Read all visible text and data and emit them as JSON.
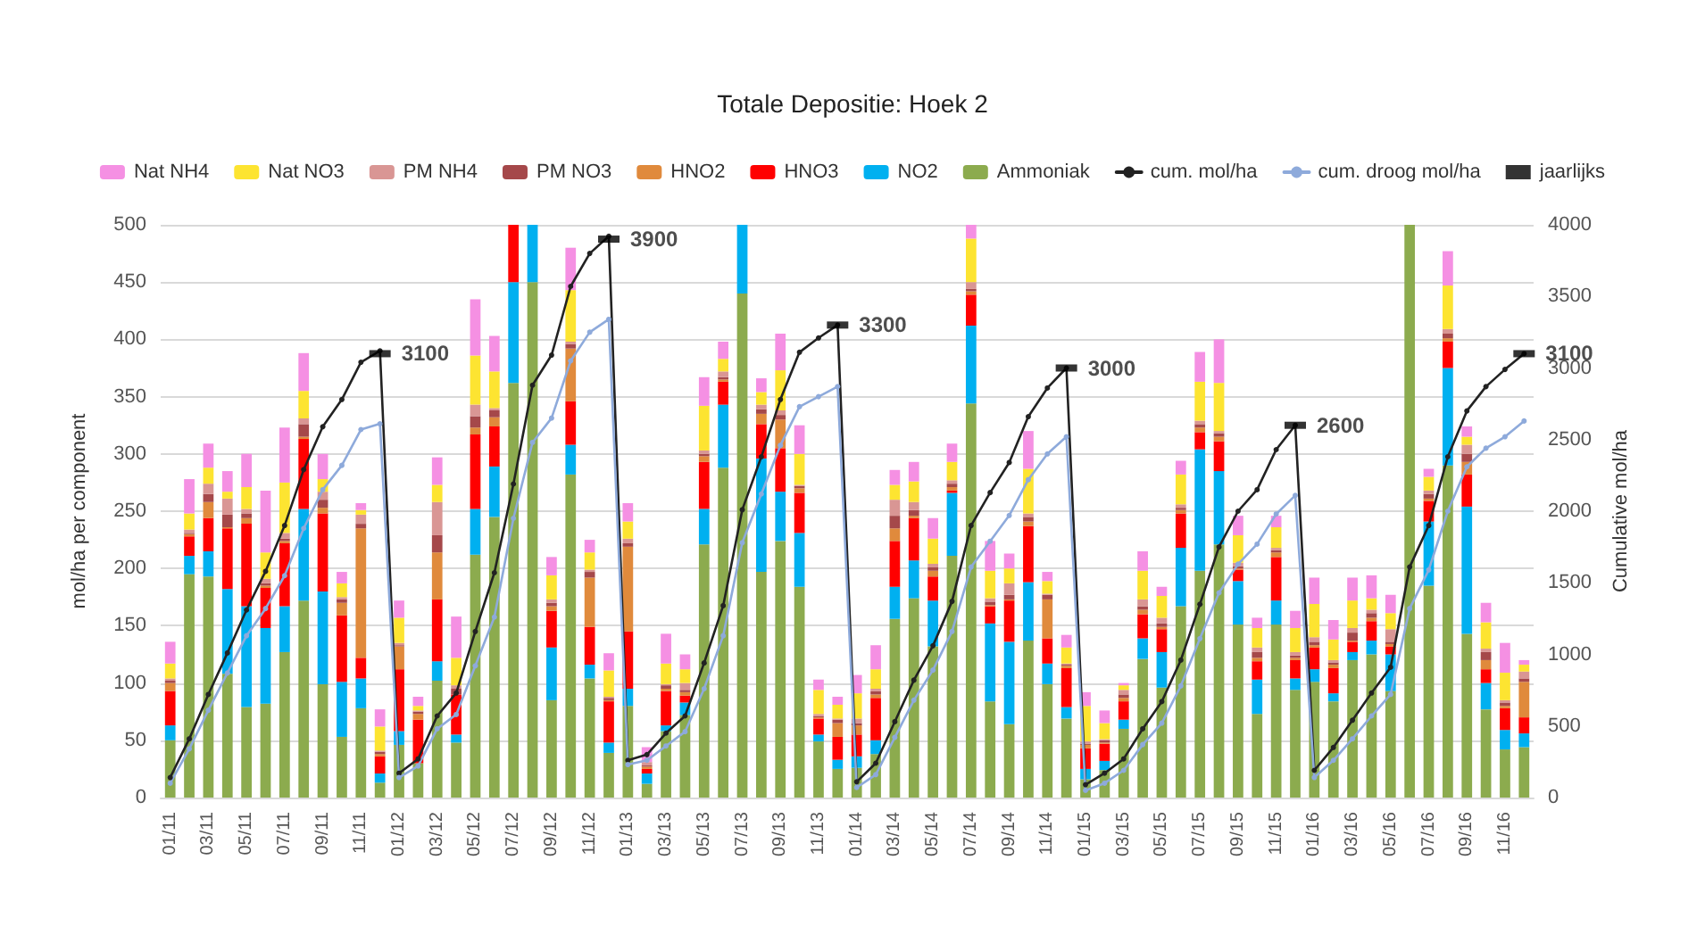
{
  "chart_data": {
    "type": "bar",
    "title": "Totale Depositie: Hoek 2",
    "ylabel": "mol/ha per component",
    "y2label": "Cumulative mol/ha",
    "categories": [
      "01/11",
      null,
      "03/11",
      null,
      "05/11",
      null,
      "07/11",
      null,
      "09/11",
      null,
      "11/11",
      null,
      "01/12",
      null,
      "03/12",
      null,
      "05/12",
      null,
      "07/12",
      null,
      "09/12",
      null,
      "11/12",
      null,
      "01/13",
      null,
      "03/13",
      null,
      "05/13",
      null,
      "07/13",
      null,
      "09/13",
      null,
      "11/13",
      null,
      "01/14",
      null,
      "03/14",
      null,
      "05/14",
      null,
      "07/14",
      null,
      "09/14",
      null,
      "11/14",
      null,
      "01/15",
      null,
      "03/15",
      null,
      "05/15",
      null,
      "07/15",
      null,
      "09/15",
      null,
      "11/15",
      null,
      "01/16",
      null,
      "03/16",
      null,
      "05/16",
      null,
      "07/16",
      null,
      "09/16",
      null,
      "11/16",
      null
    ],
    "stacked": true,
    "grid": "y",
    "legend": "top",
    "ylim": [
      0,
      500
    ],
    "yticks": [
      0,
      50,
      100,
      150,
      200,
      250,
      300,
      350,
      400,
      450,
      500
    ],
    "y2lim": [
      0,
      4000
    ],
    "y2ticks": [
      0,
      500,
      1000,
      1500,
      2000,
      2500,
      3000,
      3500,
      4000
    ],
    "series": [
      {
        "name": "Ammoniak",
        "color": "#8cab4e",
        "values": [
          50,
          195,
          193,
          108,
          79,
          82,
          127,
          172,
          99,
          53,
          78,
          13,
          46,
          30,
          102,
          48,
          212,
          245,
          362,
          450,
          85,
          282,
          104,
          39,
          80,
          12,
          58,
          72,
          221,
          288,
          440,
          197,
          224,
          184,
          49,
          25,
          26,
          38,
          156,
          174,
          132,
          211,
          344,
          84,
          64,
          137,
          99,
          69,
          16,
          24,
          60,
          121,
          96,
          167,
          198,
          221,
          151,
          73,
          151,
          94,
          101,
          84,
          120,
          125,
          93,
          500,
          185,
          290,
          143,
          77,
          42,
          44
        ]
      },
      {
        "name": "NO2",
        "color": "#00b0f0",
        "values": [
          13,
          16,
          22,
          74,
          88,
          66,
          40,
          80,
          81,
          48,
          26,
          8,
          12,
          null,
          17,
          7,
          40,
          44,
          88,
          50,
          46,
          26,
          12,
          9,
          15,
          9,
          5,
          11,
          31,
          55,
          60,
          99,
          43,
          47,
          6,
          8,
          10,
          12,
          28,
          33,
          40,
          55,
          68,
          68,
          72,
          51,
          18,
          10,
          9,
          8,
          8,
          18,
          31,
          51,
          106,
          64,
          38,
          30,
          21,
          10,
          11,
          7,
          7,
          12,
          32,
          null,
          56,
          85,
          111,
          23,
          17,
          12
        ]
      },
      {
        "name": "HNO3",
        "color": "#ff0000",
        "values": [
          30,
          17,
          29,
          53,
          72,
          35,
          55,
          61,
          68,
          58,
          18,
          15,
          54,
          38,
          54,
          35,
          65,
          35,
          50,
          null,
          32,
          38,
          33,
          36,
          50,
          4,
          30,
          6,
          41,
          20,
          null,
          30,
          38,
          35,
          14,
          20,
          19,
          37,
          40,
          37,
          21,
          2,
          27,
          15,
          36,
          49,
          22,
          34,
          18,
          15,
          16,
          21,
          20,
          30,
          15,
          26,
          10,
          16,
          38,
          16,
          19,
          22,
          9,
          17,
          7,
          null,
          18,
          23,
          28,
          12,
          19,
          14
        ]
      },
      {
        "name": "HNO2",
        "color": "#e08a3c",
        "values": [
          7,
          2,
          14,
          1,
          5,
          2,
          2,
          2,
          5,
          11,
          113,
          2,
          20,
          5,
          41,
          null,
          6,
          8,
          null,
          null,
          4,
          46,
          43,
          1,
          74,
          2,
          2,
          3,
          5,
          2,
          null,
          9,
          25,
          4,
          1,
          12,
          8,
          3,
          11,
          2,
          5,
          3,
          3,
          1,
          1,
          4,
          34,
          2,
          3,
          1,
          3,
          4,
          2,
          3,
          4,
          4,
          1,
          3,
          4,
          2,
          2,
          3,
          1,
          3,
          2,
          null,
          2,
          3,
          11,
          8,
          2,
          31
        ]
      },
      {
        "name": "PM NO3",
        "color": "#a5484a",
        "values": [
          2,
          1,
          7,
          11,
          4,
          2,
          2,
          11,
          7,
          3,
          4,
          2,
          1,
          2,
          15,
          5,
          10,
          6,
          null,
          null,
          3,
          4,
          5,
          2,
          3,
          1,
          3,
          2,
          2,
          2,
          null,
          4,
          4,
          2,
          1,
          3,
          2,
          3,
          11,
          5,
          3,
          3,
          2,
          3,
          4,
          4,
          4,
          1,
          1,
          2,
          3,
          3,
          3,
          2,
          3,
          3,
          2,
          5,
          2,
          2,
          3,
          2,
          7,
          4,
          2,
          null,
          4,
          4,
          7,
          7,
          3,
          3
        ]
      },
      {
        "name": "PM NH4",
        "color": "#d99694",
        "values": [
          2,
          3,
          9,
          14,
          4,
          4,
          5,
          5,
          7,
          2,
          8,
          1,
          2,
          1,
          29,
          3,
          10,
          2,
          null,
          null,
          3,
          2,
          2,
          1,
          4,
          3,
          1,
          6,
          3,
          5,
          null,
          4,
          4,
          1,
          2,
          1,
          4,
          2,
          14,
          7,
          3,
          3,
          6,
          3,
          10,
          3,
          1,
          1,
          2,
          1,
          4,
          6,
          5,
          3,
          3,
          2,
          3,
          4,
          2,
          3,
          4,
          2,
          4,
          3,
          11,
          null,
          3,
          4,
          8,
          3,
          2,
          6
        ]
      },
      {
        "name": "Nat NO3",
        "color": "#fde431",
        "values": [
          13,
          14,
          14,
          6,
          19,
          23,
          44,
          24,
          11,
          12,
          4,
          21,
          22,
          4,
          15,
          24,
          43,
          32,
          null,
          null,
          21,
          45,
          15,
          23,
          15,
          null,
          18,
          12,
          39,
          11,
          null,
          11,
          35,
          27,
          21,
          12,
          22,
          17,
          13,
          18,
          22,
          16,
          38,
          24,
          13,
          39,
          11,
          14,
          31,
          14,
          4,
          25,
          19,
          26,
          34,
          42,
          24,
          17,
          18,
          21,
          29,
          18,
          24,
          10,
          14,
          null,
          12,
          38,
          7,
          23,
          24,
          6
        ]
      },
      {
        "name": "Nat NH4",
        "color": "#f590e3",
        "values": [
          19,
          30,
          21,
          18,
          29,
          54,
          48,
          33,
          22,
          10,
          6,
          15,
          15,
          8,
          24,
          36,
          49,
          31,
          null,
          null,
          16,
          37,
          11,
          15,
          16,
          13,
          26,
          13,
          25,
          15,
          null,
          12,
          32,
          25,
          9,
          7,
          16,
          21,
          13,
          17,
          18,
          16,
          12,
          26,
          13,
          33,
          8,
          11,
          12,
          11,
          2,
          17,
          8,
          12,
          26,
          38,
          17,
          9,
          10,
          15,
          23,
          17,
          20,
          20,
          16,
          null,
          7,
          30,
          9,
          17,
          26,
          4
        ]
      },
      {
        "name": "cum. mol/ha",
        "type": "line",
        "axis": "y2",
        "marker": "circle",
        "color": "#222222",
        "values": [
          140,
          410,
          720,
          1010,
          1310,
          1580,
          1900,
          2290,
          2590,
          2780,
          3040,
          3120,
          170,
          270,
          570,
          730,
          1160,
          1570,
          2190,
          2880,
          3090,
          3570,
          3800,
          3920,
          260,
          300,
          450,
          570,
          940,
          1340,
          2010,
          2380,
          2780,
          3110,
          3210,
          3300,
          110,
          240,
          530,
          820,
          1060,
          1370,
          1900,
          2130,
          2340,
          2660,
          2860,
          3000,
          90,
          170,
          270,
          480,
          670,
          960,
          1350,
          1750,
          2000,
          2150,
          2430,
          2600,
          190,
          350,
          540,
          730,
          910,
          1610,
          1900,
          2380,
          2700,
          2870,
          2990,
          3100
        ]
      },
      {
        "name": "cum. droog mol/ha",
        "type": "line",
        "axis": "y2",
        "marker": "circle",
        "color": "#8eaadb",
        "values": [
          100,
          340,
          610,
          870,
          1130,
          1320,
          1550,
          1880,
          2150,
          2320,
          2570,
          2610,
          140,
          220,
          480,
          580,
          920,
          1260,
          1950,
          2480,
          2650,
          3050,
          3250,
          3340,
          230,
          260,
          360,
          460,
          760,
          1130,
          1780,
          2120,
          2460,
          2730,
          2800,
          2870,
          70,
          160,
          420,
          680,
          890,
          1160,
          1610,
          1790,
          1970,
          2220,
          2400,
          2520,
          50,
          100,
          190,
          370,
          520,
          780,
          1110,
          1430,
          1630,
          1770,
          1980,
          2110,
          140,
          260,
          410,
          570,
          720,
          1320,
          1590,
          2000,
          2310,
          2440,
          2520,
          2630
        ]
      },
      {
        "name": "jaarlijks",
        "type": "scatter",
        "axis": "y2",
        "marker": "square",
        "color": "#000000",
        "values": [
          null,
          null,
          null,
          null,
          null,
          null,
          null,
          null,
          null,
          null,
          null,
          3100,
          null,
          null,
          null,
          null,
          null,
          null,
          null,
          null,
          null,
          null,
          null,
          3900,
          null,
          null,
          null,
          null,
          null,
          null,
          null,
          null,
          null,
          null,
          null,
          3300,
          null,
          null,
          null,
          null,
          null,
          null,
          null,
          null,
          null,
          null,
          null,
          3000,
          null,
          null,
          null,
          null,
          null,
          null,
          null,
          null,
          null,
          null,
          null,
          2600,
          null,
          null,
          null,
          null,
          null,
          null,
          null,
          null,
          null,
          null,
          null,
          3100
        ],
        "value_labels": [
          null,
          null,
          null,
          null,
          null,
          null,
          null,
          null,
          null,
          null,
          null,
          "3100",
          null,
          null,
          null,
          null,
          null,
          null,
          null,
          null,
          null,
          null,
          null,
          "3900",
          null,
          null,
          null,
          null,
          null,
          null,
          null,
          null,
          null,
          null,
          null,
          "3300",
          null,
          null,
          null,
          null,
          null,
          null,
          null,
          null,
          null,
          null,
          null,
          "3000",
          null,
          null,
          null,
          null,
          null,
          null,
          null,
          null,
          null,
          null,
          null,
          "2600",
          null,
          null,
          null,
          null,
          null,
          null,
          null,
          null,
          null,
          null,
          null,
          "3100"
        ]
      }
    ]
  }
}
